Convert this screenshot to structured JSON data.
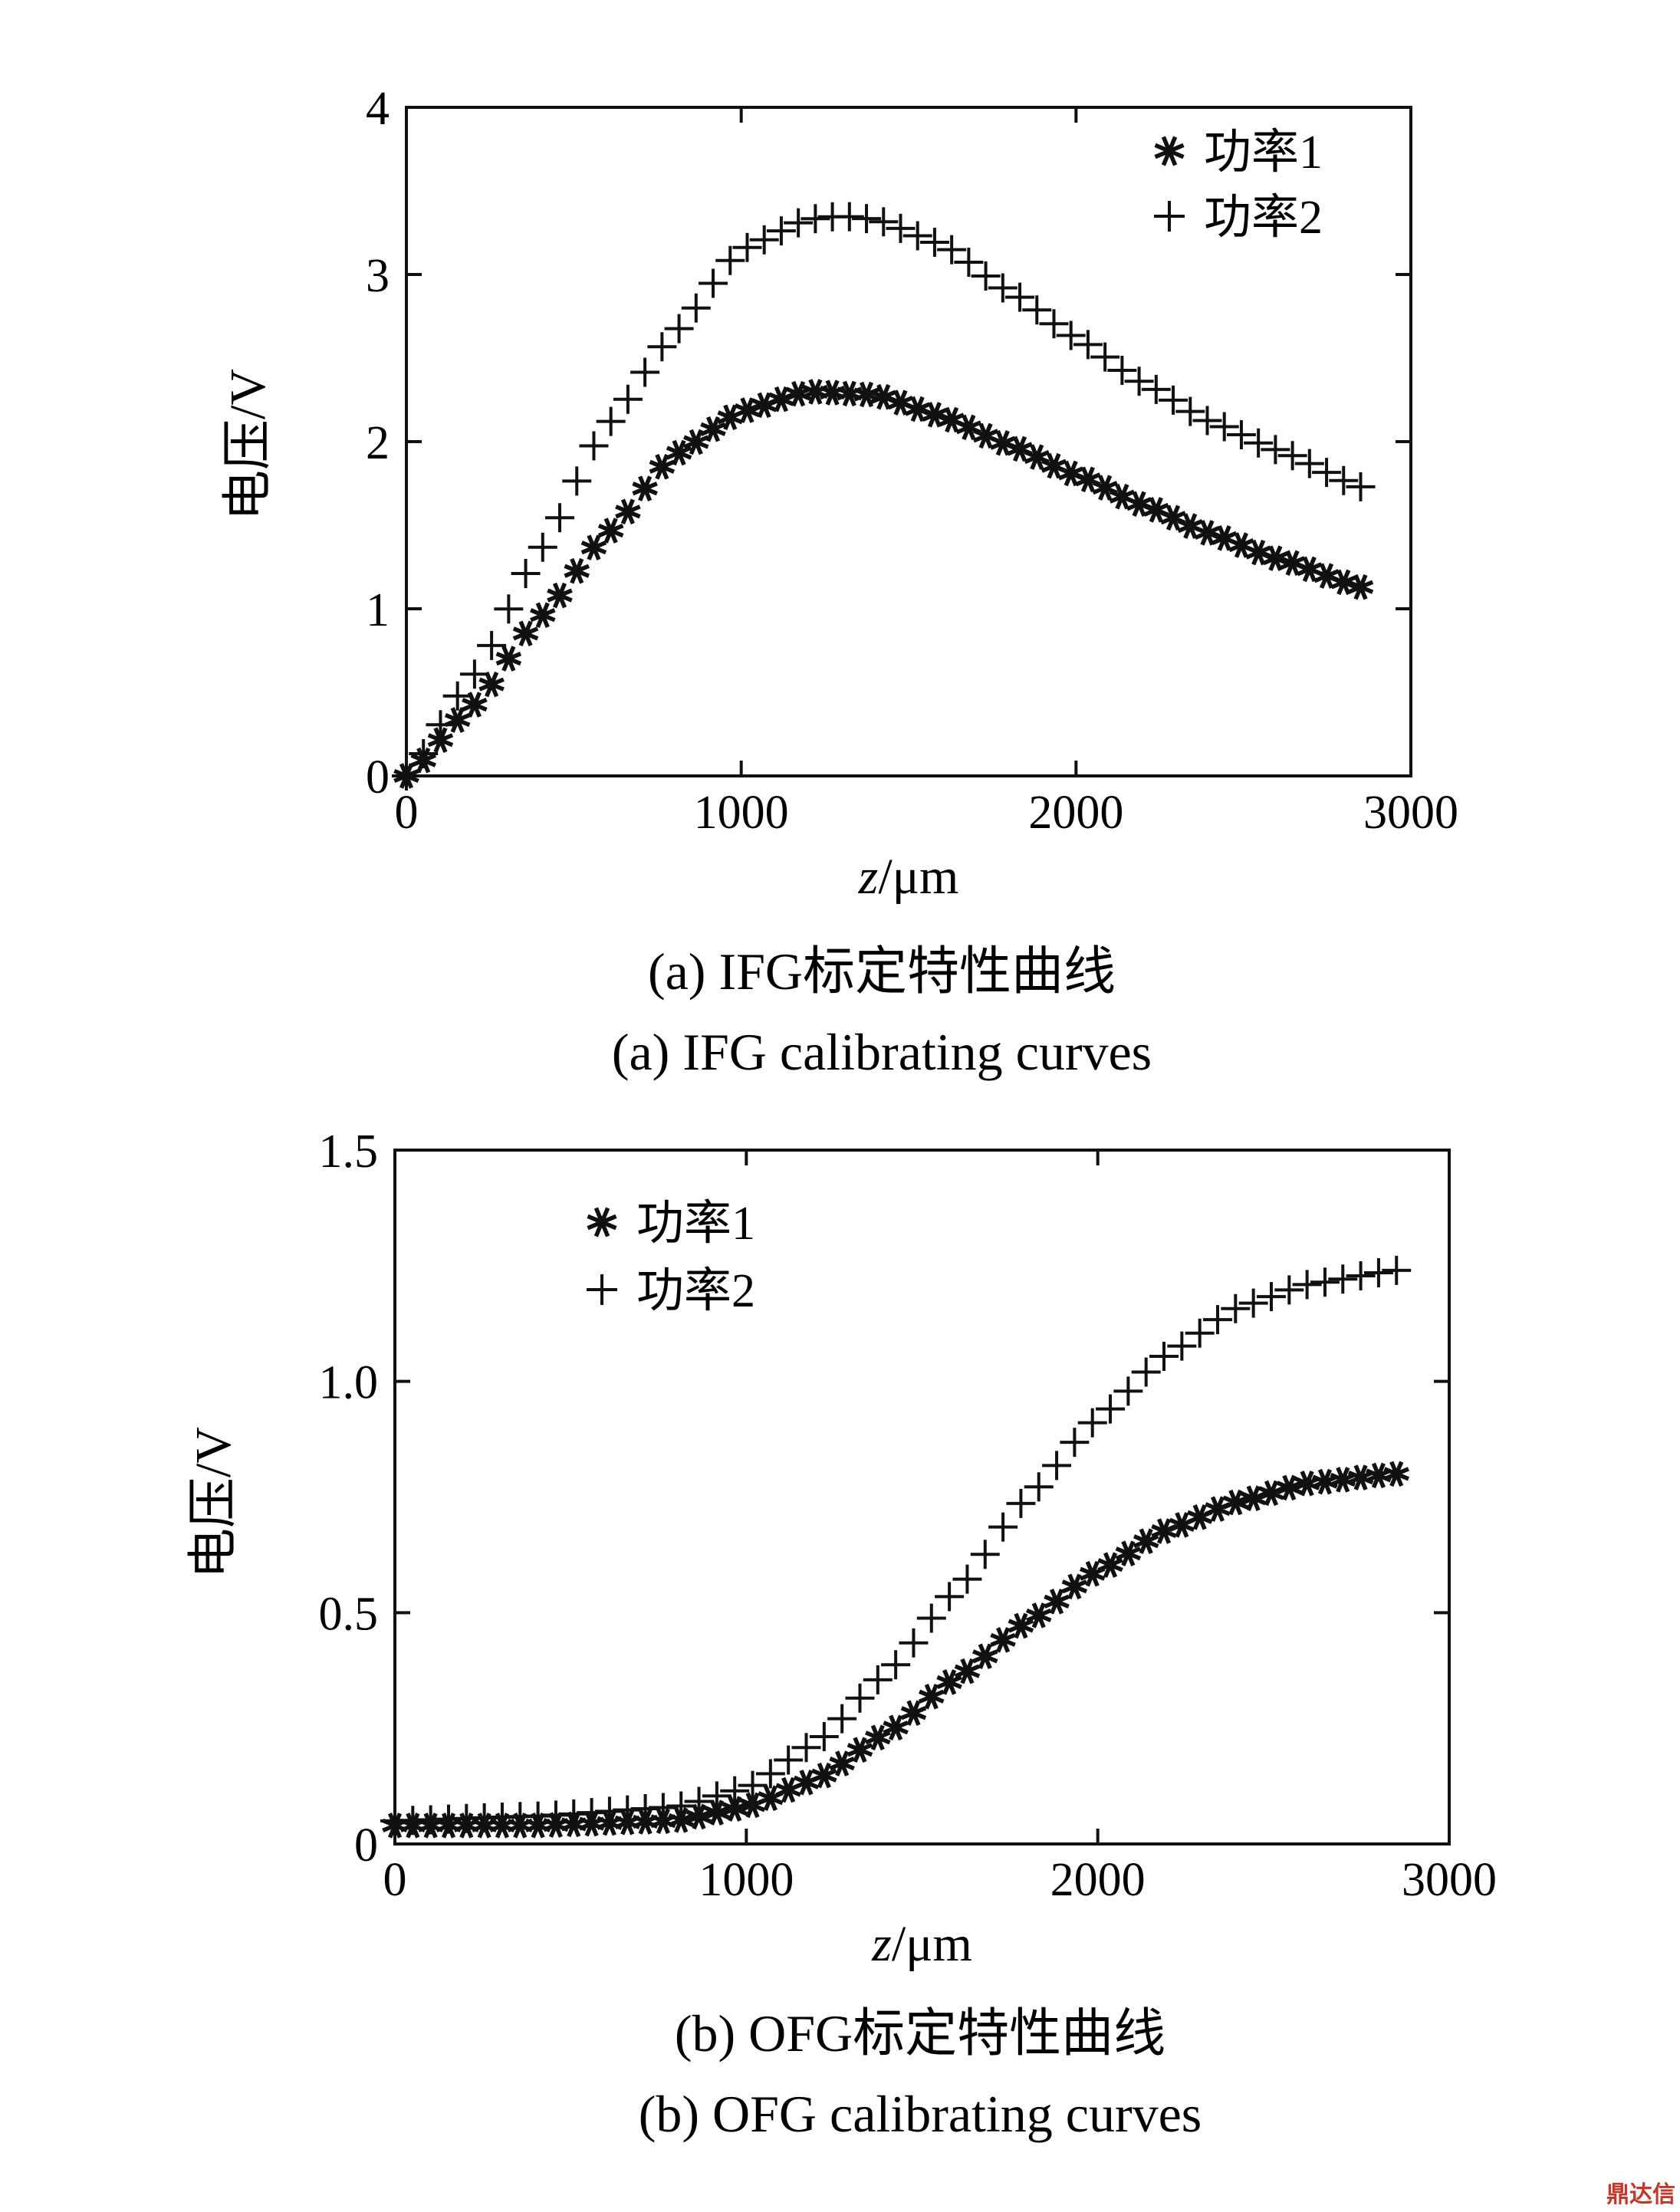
{
  "chart_data": [
    {
      "type": "scatter",
      "xlabel": {
        "var": "z",
        "unit": "/μm"
      },
      "ylabel": "电压/V",
      "xlim": [
        0,
        3000
      ],
      "ylim": [
        0,
        4
      ],
      "xticks": [
        "0",
        "1000",
        "2000",
        "3000"
      ],
      "yticks": [
        "0",
        "1",
        "2",
        "3",
        "4"
      ],
      "legend_position": "top-right",
      "caption_cn": "(a) IFG标定特性曲线",
      "caption_en": "(a) IFG calibrating curves",
      "series": [
        {
          "name": "功率1",
          "marker": "asterisk",
          "x": [
            0,
            200,
            400,
            600,
            800,
            1000,
            1200,
            1400,
            1600,
            1800,
            2000,
            2200,
            2400,
            2600,
            2850
          ],
          "y": [
            0,
            0.42,
            0.95,
            1.45,
            1.92,
            2.18,
            2.3,
            2.28,
            2.15,
            1.98,
            1.8,
            1.62,
            1.45,
            1.3,
            1.13
          ]
        },
        {
          "name": "功率2",
          "marker": "plus",
          "x": [
            0,
            200,
            400,
            600,
            800,
            1000,
            1200,
            1300,
            1400,
            1600,
            1800,
            2000,
            2200,
            2400,
            2600,
            2850
          ],
          "y": [
            0,
            0.6,
            1.35,
            2.1,
            2.65,
            3.15,
            3.33,
            3.35,
            3.33,
            3.18,
            2.9,
            2.62,
            2.35,
            2.12,
            1.95,
            1.73
          ]
        }
      ]
    },
    {
      "type": "scatter",
      "xlabel": {
        "var": "z",
        "unit": "/μm"
      },
      "ylabel": "电压/V",
      "xlim": [
        0,
        3000
      ],
      "ylim": [
        0,
        1.5
      ],
      "xticks": [
        "0",
        "1000",
        "2000",
        "3000"
      ],
      "yticks": [
        "0",
        "0.5",
        "1.0",
        "1.5"
      ],
      "legend_position": "top-left",
      "caption_cn": "(b) OFG标定特性曲线",
      "caption_en": "(b) OFG calibrating curves",
      "series": [
        {
          "name": "功率1",
          "marker": "asterisk",
          "x": [
            0,
            400,
            800,
            1000,
            1200,
            1400,
            1600,
            1800,
            2000,
            2200,
            2400,
            2600,
            2850
          ],
          "y": [
            0.04,
            0.04,
            0.05,
            0.08,
            0.14,
            0.24,
            0.36,
            0.48,
            0.59,
            0.68,
            0.74,
            0.78,
            0.8
          ]
        },
        {
          "name": "功率2",
          "marker": "plus",
          "x": [
            0,
            400,
            800,
            1000,
            1200,
            1400,
            1600,
            1800,
            2000,
            2200,
            2400,
            2600,
            2850
          ],
          "y": [
            0.05,
            0.06,
            0.08,
            0.12,
            0.22,
            0.37,
            0.55,
            0.75,
            0.92,
            1.06,
            1.16,
            1.21,
            1.24
          ]
        }
      ]
    }
  ],
  "watermark": "鼎达信"
}
